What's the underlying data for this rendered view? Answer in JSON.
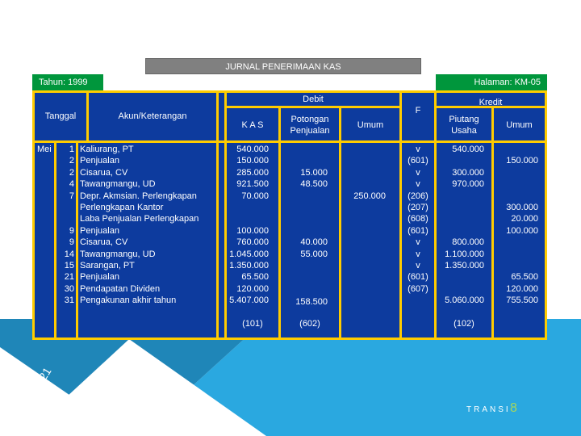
{
  "title": "JURNAL PENERIMAAN KAS",
  "tahun": "Tahun: 1999",
  "halaman": "Halaman: KM-05",
  "headers": {
    "tanggal": "Tanggal",
    "akun": "Akun/Keterangan",
    "debit": "Debit",
    "kas": "K A S",
    "potongan": "Potongan\nPenjualan",
    "umum_debit": "Umum",
    "f": "F",
    "kredit": "Kredit",
    "piutang": "Piutang\nUsaha",
    "umum_kredit": "Umum"
  },
  "month": "Mei",
  "days": "1\n2\n2\n4\n7\n\n\n9\n9\n14\n15\n21\n30\n31",
  "accounts": "Kaliurang, PT\nPenjualan\nCisarua, CV\nTawangmangu, UD\nDepr. Akmsian. Perlengkapan\nPerlengkapan Kantor\nLaba Penjualan Perlengkapan\nPenjualan\nCisarua, CV\nTawangmangu, UD\nSarangan, PT\nPenjualan\nPendapatan Dividen\nPengakunan akhir tahun",
  "kas_values": "540.000\n150.000\n285.000\n921.500\n70.000\n\n\n100.000\n760.000\n1.045.000\n1.350.000\n65.500\n120.000\n5.407.000",
  "potongan_values": "15.000\n48.500",
  "potongan_values2": "40.000\n55.000",
  "potongan_total": "158.500",
  "umum_debit_value": "250.000",
  "f_values": "v\n(601)\nv\nv\n(206)\n(207)\n(608)\n(601)\nv\nv\nv\n(601)\n(607)",
  "piutang_values1": "540.000",
  "piutang_values2": "300.000\n970.000",
  "piutang_values3": "800.000\n1.100.000\n1.350.000",
  "piutang_total": "5.060.000",
  "umum_kredit_values1": "150.000",
  "umum_kredit_values2": "300.000\n20.000\n100.000",
  "umum_kredit_values3": "65.500\n120.000\n755.500",
  "footer_refs": {
    "kas": "(101)",
    "potongan": "(602)",
    "piutang": "(102)"
  },
  "slide_date": "2/25/2021",
  "brand": "TRANSI",
  "page_number": "8",
  "colors": {
    "table_border": "#ffcc00",
    "cell_blue": "#0d3b9e",
    "green": "#00963c",
    "teal": "#2a9fd6",
    "dark_teal": "#1e7fa8"
  }
}
